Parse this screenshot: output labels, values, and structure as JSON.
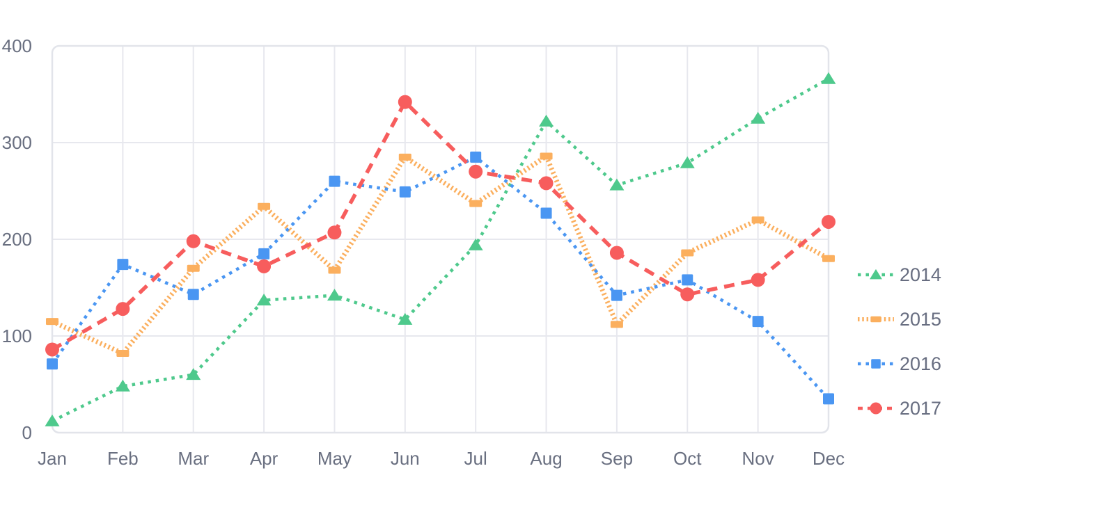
{
  "chart_data": {
    "type": "line",
    "title": "",
    "xlabel": "",
    "ylabel": "",
    "categories": [
      "Jan",
      "Feb",
      "Mar",
      "Apr",
      "May",
      "Jun",
      "Jul",
      "Aug",
      "Sep",
      "Oct",
      "Nov",
      "Dec"
    ],
    "y_axis": {
      "min": 0,
      "max": 400,
      "tick_step": 100,
      "tick_labels": [
        "0",
        "100",
        "200",
        "300",
        "400"
      ]
    },
    "grid": true,
    "legend": {
      "position": "right",
      "entries": [
        "2014",
        "2015",
        "2016",
        "2017"
      ]
    },
    "series": [
      {
        "name": "2014",
        "color": "#4ec98c",
        "line_style": "dotted",
        "marker": "triangle",
        "values": [
          12,
          48,
          60,
          137,
          142,
          117,
          194,
          322,
          256,
          279,
          325,
          366
        ]
      },
      {
        "name": "2015",
        "color": "#fbaf5e",
        "line_style": "dense-dotted",
        "marker": "rect",
        "values": [
          115,
          82,
          170,
          234,
          168,
          285,
          237,
          286,
          112,
          186,
          220,
          180
        ]
      },
      {
        "name": "2016",
        "color": "#4a96f2",
        "line_style": "dotted",
        "marker": "square",
        "values": [
          71,
          174,
          143,
          185,
          260,
          249,
          285,
          227,
          142,
          158,
          115,
          35
        ]
      },
      {
        "name": "2017",
        "color": "#f75d5d",
        "line_style": "dashed",
        "marker": "circle",
        "values": [
          86,
          128,
          198,
          172,
          207,
          342,
          270,
          258,
          186,
          143,
          158,
          218
        ]
      }
    ]
  },
  "colors": {
    "axis_text": "#696f80",
    "legend_text": "#676d80",
    "grid_line": "#e7e8ee",
    "plot_border": "#e2e4ea",
    "background": "#ffffff"
  }
}
